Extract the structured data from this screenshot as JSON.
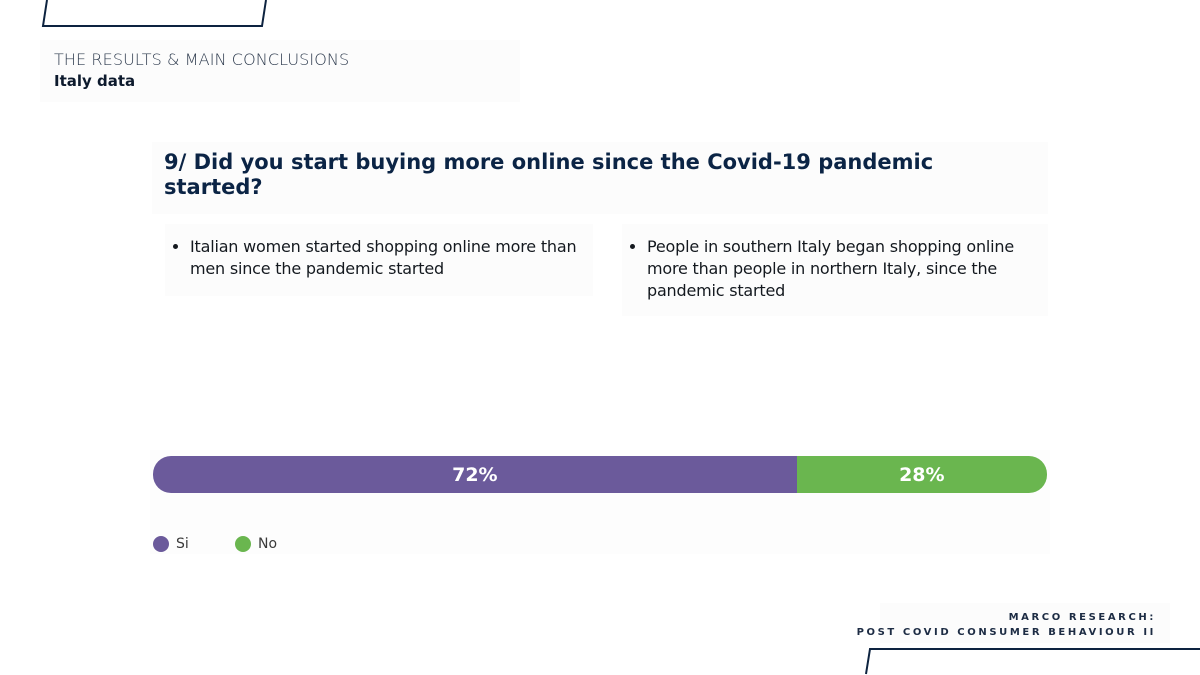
{
  "header": {
    "section_title": "THE RESULTS & MAIN CONCLUSIONS",
    "subsection_title": "Italy data"
  },
  "question": {
    "text": "9/ Did you start buying more online since the Covid-19 pandemic started?"
  },
  "bullets": {
    "left": "Italian women started shopping online more than men since the pandemic started",
    "right": "People in southern Italy began shopping online more than people in northern Italy, since the pandemic started"
  },
  "chart_data": {
    "type": "bar",
    "stacked": true,
    "orientation": "horizontal",
    "title": "",
    "xlabel": "",
    "ylabel": "",
    "series": [
      {
        "name": "Si",
        "value": 72,
        "label": "72%",
        "color": "#6b5a9b"
      },
      {
        "name": "No",
        "value": 28,
        "label": "28%",
        "color": "#6ab64f"
      }
    ],
    "legend_position": "bottom-left",
    "grid": false
  },
  "footer": {
    "line1": "MARCO RESEARCH:",
    "line2": "POST COVID CONSUMER BEHAVIOUR II"
  },
  "colors": {
    "navy": "#0d2340",
    "purple": "#6b5a9b",
    "green": "#6ab64f"
  }
}
